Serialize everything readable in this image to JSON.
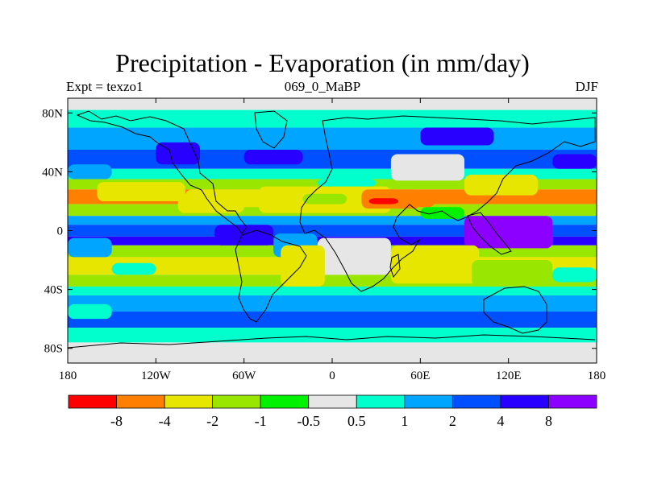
{
  "chart_data": {
    "type": "heatmap",
    "title": "Precipitation - Evaporation (in mm/day)",
    "subtitle_left": "Expt = texzo1",
    "subtitle_center": "069_0_MaBP",
    "subtitle_right": "DJF",
    "x_axis": {
      "range": [
        -180,
        180
      ],
      "ticks": [
        {
          "value": -180,
          "label": "180"
        },
        {
          "value": -120,
          "label": "120W"
        },
        {
          "value": -60,
          "label": "60W"
        },
        {
          "value": 0,
          "label": "0"
        },
        {
          "value": 60,
          "label": "60E"
        },
        {
          "value": 120,
          "label": "120E"
        },
        {
          "value": 180,
          "label": "180"
        }
      ]
    },
    "y_axis": {
      "range": [
        -90,
        90
      ],
      "ticks": [
        {
          "value": 80,
          "label": "80N"
        },
        {
          "value": 40,
          "label": "40N"
        },
        {
          "value": 0,
          "label": "0"
        },
        {
          "value": -40,
          "label": "40S"
        },
        {
          "value": -80,
          "label": "80S"
        }
      ]
    },
    "colorbar": {
      "colors": [
        "#ff0000",
        "#ff8000",
        "#e6e600",
        "#99e600",
        "#00f200",
        "#e6e6e6",
        "#00ffcc",
        "#00a5ff",
        "#0050ff",
        "#2800ff",
        "#8c00ff"
      ],
      "labels": [
        "-8",
        "-4",
        "-2",
        "-1",
        "-0.5",
        "0.5",
        "1",
        "2",
        "4",
        "8"
      ]
    },
    "bands": [
      {
        "lat": [
          90,
          82
        ],
        "v": 0
      },
      {
        "lat": [
          82,
          70
        ],
        "v": 1
      },
      {
        "lat": [
          70,
          55
        ],
        "v": 2
      },
      {
        "lat": [
          55,
          42
        ],
        "v": 3
      },
      {
        "lat": [
          42,
          35
        ],
        "v": 1
      },
      {
        "lat": [
          35,
          28
        ],
        "v": -2
      },
      {
        "lat": [
          28,
          18
        ],
        "v": -4
      },
      {
        "lat": [
          18,
          10
        ],
        "v": -2
      },
      {
        "lat": [
          10,
          4
        ],
        "v": 2
      },
      {
        "lat": [
          4,
          -4
        ],
        "v": 3
      },
      {
        "lat": [
          -4,
          -10
        ],
        "v": 4
      },
      {
        "lat": [
          -10,
          -18
        ],
        "v": -2
      },
      {
        "lat": [
          -18,
          -30
        ],
        "v": -3
      },
      {
        "lat": [
          -30,
          -38
        ],
        "v": -2
      },
      {
        "lat": [
          -38,
          -44
        ],
        "v": 1
      },
      {
        "lat": [
          -44,
          -55
        ],
        "v": 2
      },
      {
        "lat": [
          -55,
          -66
        ],
        "v": 3
      },
      {
        "lat": [
          -66,
          -76
        ],
        "v": 1
      },
      {
        "lat": [
          -76,
          -90
        ],
        "v": 0
      }
    ],
    "patches": [
      {
        "lon": [
          -160,
          -100
        ],
        "lat": [
          33,
          20
        ],
        "v": -3
      },
      {
        "lon": [
          -100,
          -10
        ],
        "lat": [
          28,
          16
        ],
        "v": -3
      },
      {
        "lon": [
          -105,
          -60
        ],
        "lat": [
          25,
          12
        ],
        "v": -3
      },
      {
        "lon": [
          -50,
          40
        ],
        "lat": [
          30,
          12
        ],
        "v": -3
      },
      {
        "lon": [
          20,
          60
        ],
        "lat": [
          28,
          15
        ],
        "v": -4
      },
      {
        "lon": [
          25,
          45
        ],
        "lat": [
          22,
          18
        ],
        "v": -5
      },
      {
        "lon": [
          45,
          70
        ],
        "lat": [
          24,
          16
        ],
        "v": -4
      },
      {
        "lon": [
          60,
          90
        ],
        "lat": [
          16,
          8
        ],
        "v": -1
      },
      {
        "lon": [
          -10,
          30
        ],
        "lat": [
          35,
          30
        ],
        "v": 1
      },
      {
        "lon": [
          90,
          140
        ],
        "lat": [
          38,
          24
        ],
        "v": -3
      },
      {
        "lon": [
          40,
          90
        ],
        "lat": [
          52,
          34
        ],
        "v": 0
      },
      {
        "lon": [
          90,
          150
        ],
        "lat": [
          10,
          -12
        ],
        "v": 5
      },
      {
        "lon": [
          -80,
          -40
        ],
        "lat": [
          4,
          -10
        ],
        "v": 4
      },
      {
        "lon": [
          -40,
          -10
        ],
        "lat": [
          -2,
          -18
        ],
        "v": 2
      },
      {
        "lon": [
          -10,
          40
        ],
        "lat": [
          -5,
          -30
        ],
        "v": 0
      },
      {
        "lon": [
          -35,
          -5
        ],
        "lat": [
          -10,
          -38
        ],
        "v": -3
      },
      {
        "lon": [
          40,
          100
        ],
        "lat": [
          -10,
          -36
        ],
        "v": -3
      },
      {
        "lon": [
          95,
          150
        ],
        "lat": [
          -20,
          -38
        ],
        "v": -2
      },
      {
        "lon": [
          150,
          180
        ],
        "lat": [
          -25,
          -35
        ],
        "v": 1
      },
      {
        "lon": [
          -180,
          -150
        ],
        "lat": [
          -5,
          -18
        ],
        "v": 2
      },
      {
        "lon": [
          -150,
          -120
        ],
        "lat": [
          -22,
          -30
        ],
        "v": 1
      },
      {
        "lon": [
          -20,
          10
        ],
        "lat": [
          25,
          18
        ],
        "v": -2
      },
      {
        "lon": [
          -180,
          -150
        ],
        "lat": [
          45,
          35
        ],
        "v": 2
      },
      {
        "lon": [
          -120,
          -90
        ],
        "lat": [
          60,
          45
        ],
        "v": 4
      },
      {
        "lon": [
          -60,
          -20
        ],
        "lat": [
          55,
          45
        ],
        "v": 4
      },
      {
        "lon": [
          60,
          110
        ],
        "lat": [
          70,
          58
        ],
        "v": 4
      },
      {
        "lon": [
          150,
          180
        ],
        "lat": [
          52,
          42
        ],
        "v": 4
      },
      {
        "lon": [
          -180,
          -150
        ],
        "lat": [
          -50,
          -60
        ],
        "v": 1
      }
    ]
  }
}
